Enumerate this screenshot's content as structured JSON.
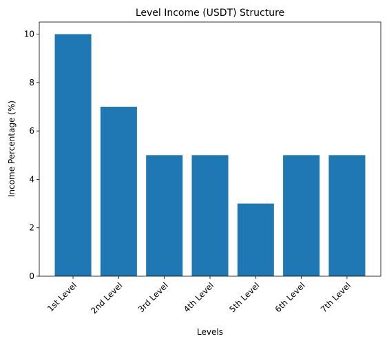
{
  "chart_data": {
    "type": "bar",
    "title": "Level Income (USDT) Structure",
    "x_label": "Levels",
    "y_label": "Income Percentage (%)",
    "categories": [
      "1st Level",
      "2nd Level",
      "3rd Level",
      "4th Level",
      "5th Level",
      "6th Level",
      "7th Level"
    ],
    "values": [
      10,
      7,
      5,
      5,
      3,
      5,
      5
    ],
    "color": "#1f77b4",
    "ylim": [
      0,
      10.5
    ],
    "yticks": [
      0,
      2,
      4,
      6,
      8,
      10
    ],
    "grid": false
  }
}
